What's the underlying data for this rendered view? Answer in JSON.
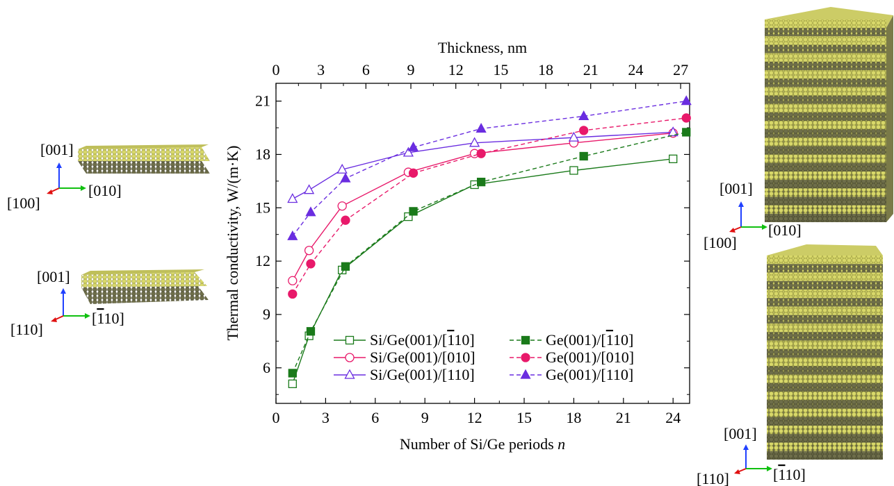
{
  "chart_data": {
    "type": "line",
    "xlabel": "Number of Si/Ge periods n",
    "xlabel_parts": {
      "text": "Number of Si/Ge periods ",
      "var": "n"
    },
    "ylabel": "Thermal conductivity, W/(m·K)",
    "top_xlabel": "Thickness, nm",
    "xlim": [
      0,
      25
    ],
    "ylim": [
      4,
      22
    ],
    "top_xlim": [
      0,
      27.6
    ],
    "x_ticks": [
      "0",
      "3",
      "6",
      "9",
      "12",
      "15",
      "18",
      "21",
      "24"
    ],
    "y_ticks": [
      "6",
      "9",
      "12",
      "15",
      "18",
      "21"
    ],
    "top_x_ticks": [
      "0",
      "3",
      "6",
      "9",
      "12",
      "15",
      "18",
      "21",
      "24",
      "27"
    ],
    "grid": false,
    "legend_position": "bottom-right",
    "series": [
      {
        "name": "Si/Ge(001)/[‾110]",
        "label_pre": "Si/Ge(001)/[",
        "label_over": "1",
        "label_post": "10]",
        "color": "#1a7a1a",
        "marker": "square",
        "filled": false,
        "dashed": false,
        "x": [
          1,
          2,
          4,
          8,
          12,
          18,
          24
        ],
        "y": [
          5.1,
          7.8,
          11.5,
          14.5,
          16.3,
          17.1,
          17.75
        ]
      },
      {
        "name": "Si/Ge(001)/[010]",
        "label_pre": "Si/Ge(001)/[010]",
        "label_over": "",
        "label_post": "",
        "color": "#e8196a",
        "marker": "circle",
        "filled": false,
        "dashed": false,
        "x": [
          1,
          2,
          4,
          8,
          12,
          18,
          24
        ],
        "y": [
          10.9,
          12.6,
          15.1,
          17.0,
          18.05,
          18.65,
          19.2
        ]
      },
      {
        "name": "Si/Ge(001)/[110]",
        "label_pre": "Si/Ge(001)/[110]",
        "label_over": "",
        "label_post": "",
        "color": "#6a2de0",
        "marker": "triangle",
        "filled": false,
        "dashed": false,
        "x": [
          1,
          2,
          4,
          8,
          12,
          18,
          24
        ],
        "y": [
          15.5,
          16.0,
          17.15,
          18.1,
          18.65,
          18.95,
          19.25
        ]
      },
      {
        "name": "Ge(001)/[‾110]",
        "label_pre": "Ge(001)/[",
        "label_over": "1",
        "label_post": "10]",
        "color": "#1a7a1a",
        "marker": "square",
        "filled": true,
        "dashed": true,
        "x": [
          1,
          2.1,
          4.2,
          8.3,
          12.4,
          18.6,
          24.8
        ],
        "y": [
          5.7,
          8.05,
          11.7,
          14.8,
          16.45,
          17.9,
          19.25
        ]
      },
      {
        "name": "Ge(001)/[010]",
        "label_pre": "Ge(001)/[010]",
        "label_over": "",
        "label_post": "",
        "color": "#e8196a",
        "marker": "circle",
        "filled": true,
        "dashed": true,
        "x": [
          1,
          2.1,
          4.2,
          8.3,
          12.4,
          18.6,
          24.8
        ],
        "y": [
          10.15,
          11.85,
          14.3,
          16.95,
          18.05,
          19.35,
          20.05
        ]
      },
      {
        "name": "Ge(001)/[110]",
        "label_pre": "Ge(001)/[110]",
        "label_over": "",
        "label_post": "",
        "color": "#6a2de0",
        "marker": "triangle",
        "filled": true,
        "dashed": true,
        "x": [
          1,
          2.1,
          4.2,
          8.3,
          12.4,
          18.6,
          24.8
        ],
        "y": [
          13.4,
          14.75,
          16.65,
          18.4,
          19.45,
          20.15,
          21.0
        ]
      }
    ]
  },
  "structures": {
    "axis_colors": {
      "vertical": "#2040ff",
      "horizontal": "#10c010",
      "depth": "#e01010"
    },
    "atom_colors": {
      "si": "#d8d86a",
      "ge": "#6e6e4a"
    },
    "thin_010": {
      "up": "[001]",
      "right": "[010]",
      "depth": "[100]"
    },
    "thin_110": {
      "up": "[001]",
      "right_pre": "[",
      "right_over": "1",
      "right_post": "10]",
      "depth": "[110]"
    },
    "thick_010": {
      "up": "[001]",
      "right": "[010]",
      "depth": "[100]"
    },
    "thick_110": {
      "up": "[001]",
      "right_pre": "[",
      "right_over": "1",
      "right_post": "10]",
      "depth": "[110]"
    }
  }
}
